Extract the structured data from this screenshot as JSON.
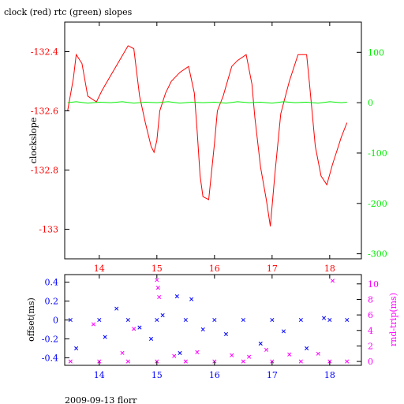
{
  "title": "clock (red) rtc (green) slopes",
  "footer": "2009-09-13 florr",
  "colors": {
    "red": "#ff0000",
    "green": "#00ee00",
    "blue": "#0000ff",
    "magenta": "#ff00ff",
    "axis": "#000000"
  },
  "chart_data": [
    {
      "type": "line",
      "ylabel": "clockslope",
      "xlim": [
        13.4,
        18.55
      ],
      "x_ticks": [
        "14",
        "15",
        "16",
        "17",
        "18"
      ],
      "ylim": [
        -133.1,
        -132.3
      ],
      "left_ticks": [
        "-132.4",
        "-132.6",
        "-132.8",
        "-133"
      ],
      "y2lim": [
        -310,
        160
      ],
      "right_ticks": [
        "100",
        "0",
        "-100",
        "-200",
        "-300"
      ],
      "grid": false,
      "series": [
        {
          "axis": "left",
          "color": "red",
          "x": [
            13.45,
            13.55,
            13.6,
            13.7,
            13.8,
            13.95,
            14.05,
            14.2,
            14.35,
            14.5,
            14.6,
            14.7,
            14.8,
            14.9,
            14.95,
            15.0,
            15.05,
            15.15,
            15.25,
            15.4,
            15.55,
            15.65,
            15.7,
            15.75,
            15.8,
            15.9,
            16.0,
            16.05,
            16.15,
            16.3,
            16.4,
            16.55,
            16.65,
            16.7,
            16.8,
            16.9,
            16.97,
            17.05,
            17.15,
            17.3,
            17.45,
            17.6,
            17.65,
            17.75,
            17.85,
            17.95,
            18.05,
            18.15,
            18.2,
            18.3
          ],
          "y": [
            -132.6,
            -132.49,
            -132.41,
            -132.44,
            -132.55,
            -132.57,
            -132.53,
            -132.48,
            -132.43,
            -132.38,
            -132.39,
            -132.55,
            -132.64,
            -132.72,
            -132.74,
            -132.7,
            -132.6,
            -132.54,
            -132.5,
            -132.47,
            -132.45,
            -132.54,
            -132.67,
            -132.82,
            -132.89,
            -132.9,
            -132.71,
            -132.6,
            -132.55,
            -132.45,
            -132.43,
            -132.41,
            -132.51,
            -132.62,
            -132.79,
            -132.9,
            -132.99,
            -132.81,
            -132.61,
            -132.5,
            -132.41,
            -132.41,
            -132.51,
            -132.72,
            -132.82,
            -132.85,
            -132.78,
            -132.72,
            -132.69,
            -132.64
          ]
        },
        {
          "axis": "right",
          "color": "green",
          "x": [
            13.45,
            13.6,
            13.8,
            14.0,
            14.2,
            14.4,
            14.6,
            14.8,
            15.0,
            15.2,
            15.4,
            15.6,
            15.8,
            16.0,
            16.2,
            16.4,
            16.6,
            16.8,
            17.0,
            17.2,
            17.4,
            17.6,
            17.8,
            18.0,
            18.2,
            18.3
          ],
          "y": [
            0,
            2,
            -1,
            1,
            0,
            2,
            -1,
            1,
            0,
            2,
            -1,
            1,
            0,
            1,
            -1,
            2,
            0,
            1,
            -1,
            2,
            0,
            1,
            -1,
            2,
            0,
            1
          ]
        }
      ]
    },
    {
      "type": "scatter",
      "ylabel": "offset(ms)",
      "y2label": "rnd-trip(ms)",
      "xlim": [
        13.4,
        18.55
      ],
      "x_ticks": [
        "14",
        "15",
        "16",
        "17",
        "18"
      ],
      "ylim": [
        -0.48,
        0.48
      ],
      "left_ticks": [
        "0.4",
        "0.2",
        "0",
        "-0.2",
        "-0.4"
      ],
      "y2lim": [
        -0.5,
        11.2
      ],
      "right_ticks": [
        "10",
        "8",
        "6",
        "4",
        "2",
        "0"
      ],
      "grid": false,
      "series": [
        {
          "axis": "left",
          "color": "blue",
          "marker": "x",
          "x": [
            13.5,
            14.0,
            14.5,
            15.0,
            15.5,
            16.0,
            16.5,
            17.0,
            17.5,
            18.0,
            18.3,
            13.6,
            14.1,
            14.3,
            14.7,
            14.9,
            15.1,
            15.35,
            15.4,
            15.6,
            15.8,
            16.2,
            16.8,
            17.2,
            17.6,
            17.9
          ],
          "y": [
            0,
            0,
            0,
            0,
            0,
            0,
            0,
            0,
            0,
            0,
            0,
            -0.3,
            -0.18,
            0.12,
            -0.08,
            -0.2,
            0.05,
            0.25,
            -0.35,
            0.22,
            -0.1,
            -0.15,
            -0.25,
            -0.12,
            -0.3,
            0.02
          ]
        },
        {
          "axis": "right",
          "color": "magenta",
          "marker": "x",
          "x": [
            13.5,
            14.0,
            14.5,
            15.0,
            15.5,
            16.0,
            16.5,
            17.0,
            17.5,
            18.0,
            18.3,
            15.0,
            15.02,
            15.04,
            14.6,
            15.7,
            16.3,
            16.9,
            17.3,
            17.8,
            18.05,
            13.9,
            14.4,
            15.3,
            16.6
          ],
          "y": [
            0,
            0,
            0,
            0,
            0,
            0,
            0,
            0,
            0,
            0,
            0,
            10.5,
            9.5,
            8.3,
            4.2,
            1.2,
            0.8,
            1.5,
            0.9,
            1.0,
            10.4,
            4.8,
            1.1,
            0.7,
            0.6
          ]
        }
      ]
    }
  ]
}
